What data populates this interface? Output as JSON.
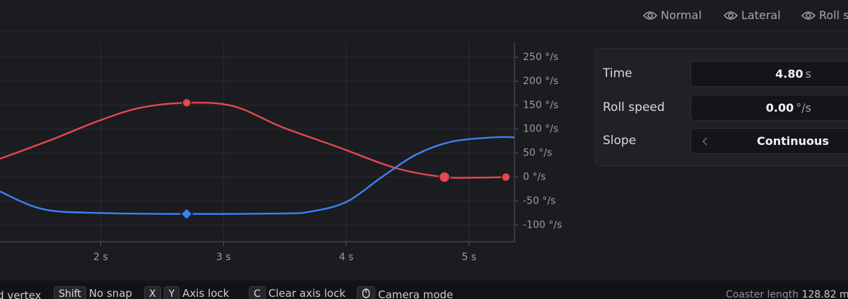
{
  "toolbar": {
    "tabs": [
      "Normal",
      "Lateral",
      "Roll s"
    ]
  },
  "chart_data": {
    "type": "line",
    "xlim": [
      1.18,
      5.37
    ],
    "ylim": [
      -135,
      250
    ],
    "xticks": [
      {
        "value": 2,
        "label": "2 s"
      },
      {
        "value": 3,
        "label": "3 s"
      },
      {
        "value": 4,
        "label": "4 s"
      },
      {
        "value": 5,
        "label": "5 s"
      }
    ],
    "yticks": [
      {
        "value": 250,
        "label": "250 °/s"
      },
      {
        "value": 200,
        "label": "200 °/s"
      },
      {
        "value": 150,
        "label": "150 °/s"
      },
      {
        "value": 100,
        "label": "100 °/s"
      },
      {
        "value": 50,
        "label": "50 °/s"
      },
      {
        "value": 0,
        "label": "0 °/s"
      },
      {
        "value": -50,
        "label": "-50 °/s"
      },
      {
        "value": -100,
        "label": "-100 °/s"
      }
    ],
    "grid": true,
    "series": [
      {
        "color": "#e5484d",
        "x": [
          1.18,
          1.59,
          1.99,
          2.33,
          2.7,
          3.08,
          3.48,
          3.94,
          4.4,
          4.8,
          5.09,
          5.3
        ],
        "values": [
          38,
          77,
          118,
          145,
          155,
          148,
          104,
          62,
          19,
          0,
          -1,
          0
        ],
        "keyframes": [
          2.7,
          4.8,
          5.3
        ]
      },
      {
        "color": "#3b82f6",
        "x": [
          1.18,
          1.53,
          2.0,
          2.7,
          3.48,
          3.71,
          4.0,
          4.29,
          4.57,
          4.86,
          5.21,
          5.37
        ],
        "values": [
          -30,
          -67,
          -75,
          -77,
          -76,
          -72,
          -52,
          0,
          47,
          74,
          83,
          83
        ],
        "keyframes": [
          2.7
        ]
      }
    ]
  },
  "panel": {
    "rows": [
      {
        "label": "Time",
        "value": "4.80",
        "unit": "s"
      },
      {
        "label": "Roll speed",
        "value": "0.00",
        "unit": "°/s"
      },
      {
        "label": "Slope",
        "value": "Continuous"
      }
    ]
  },
  "statusbar": {
    "items": [
      {
        "text": "d vertex"
      },
      {
        "keys": [
          "Shift"
        ],
        "text": "No snap"
      },
      {
        "keys": [
          "X",
          "Y"
        ],
        "text": "Axis lock"
      },
      {
        "keys": [
          "C"
        ],
        "text": "Clear axis lock"
      },
      {
        "text": "Camera mode"
      }
    ],
    "length_label": "Coaster length",
    "length_value": "128.82 m"
  }
}
